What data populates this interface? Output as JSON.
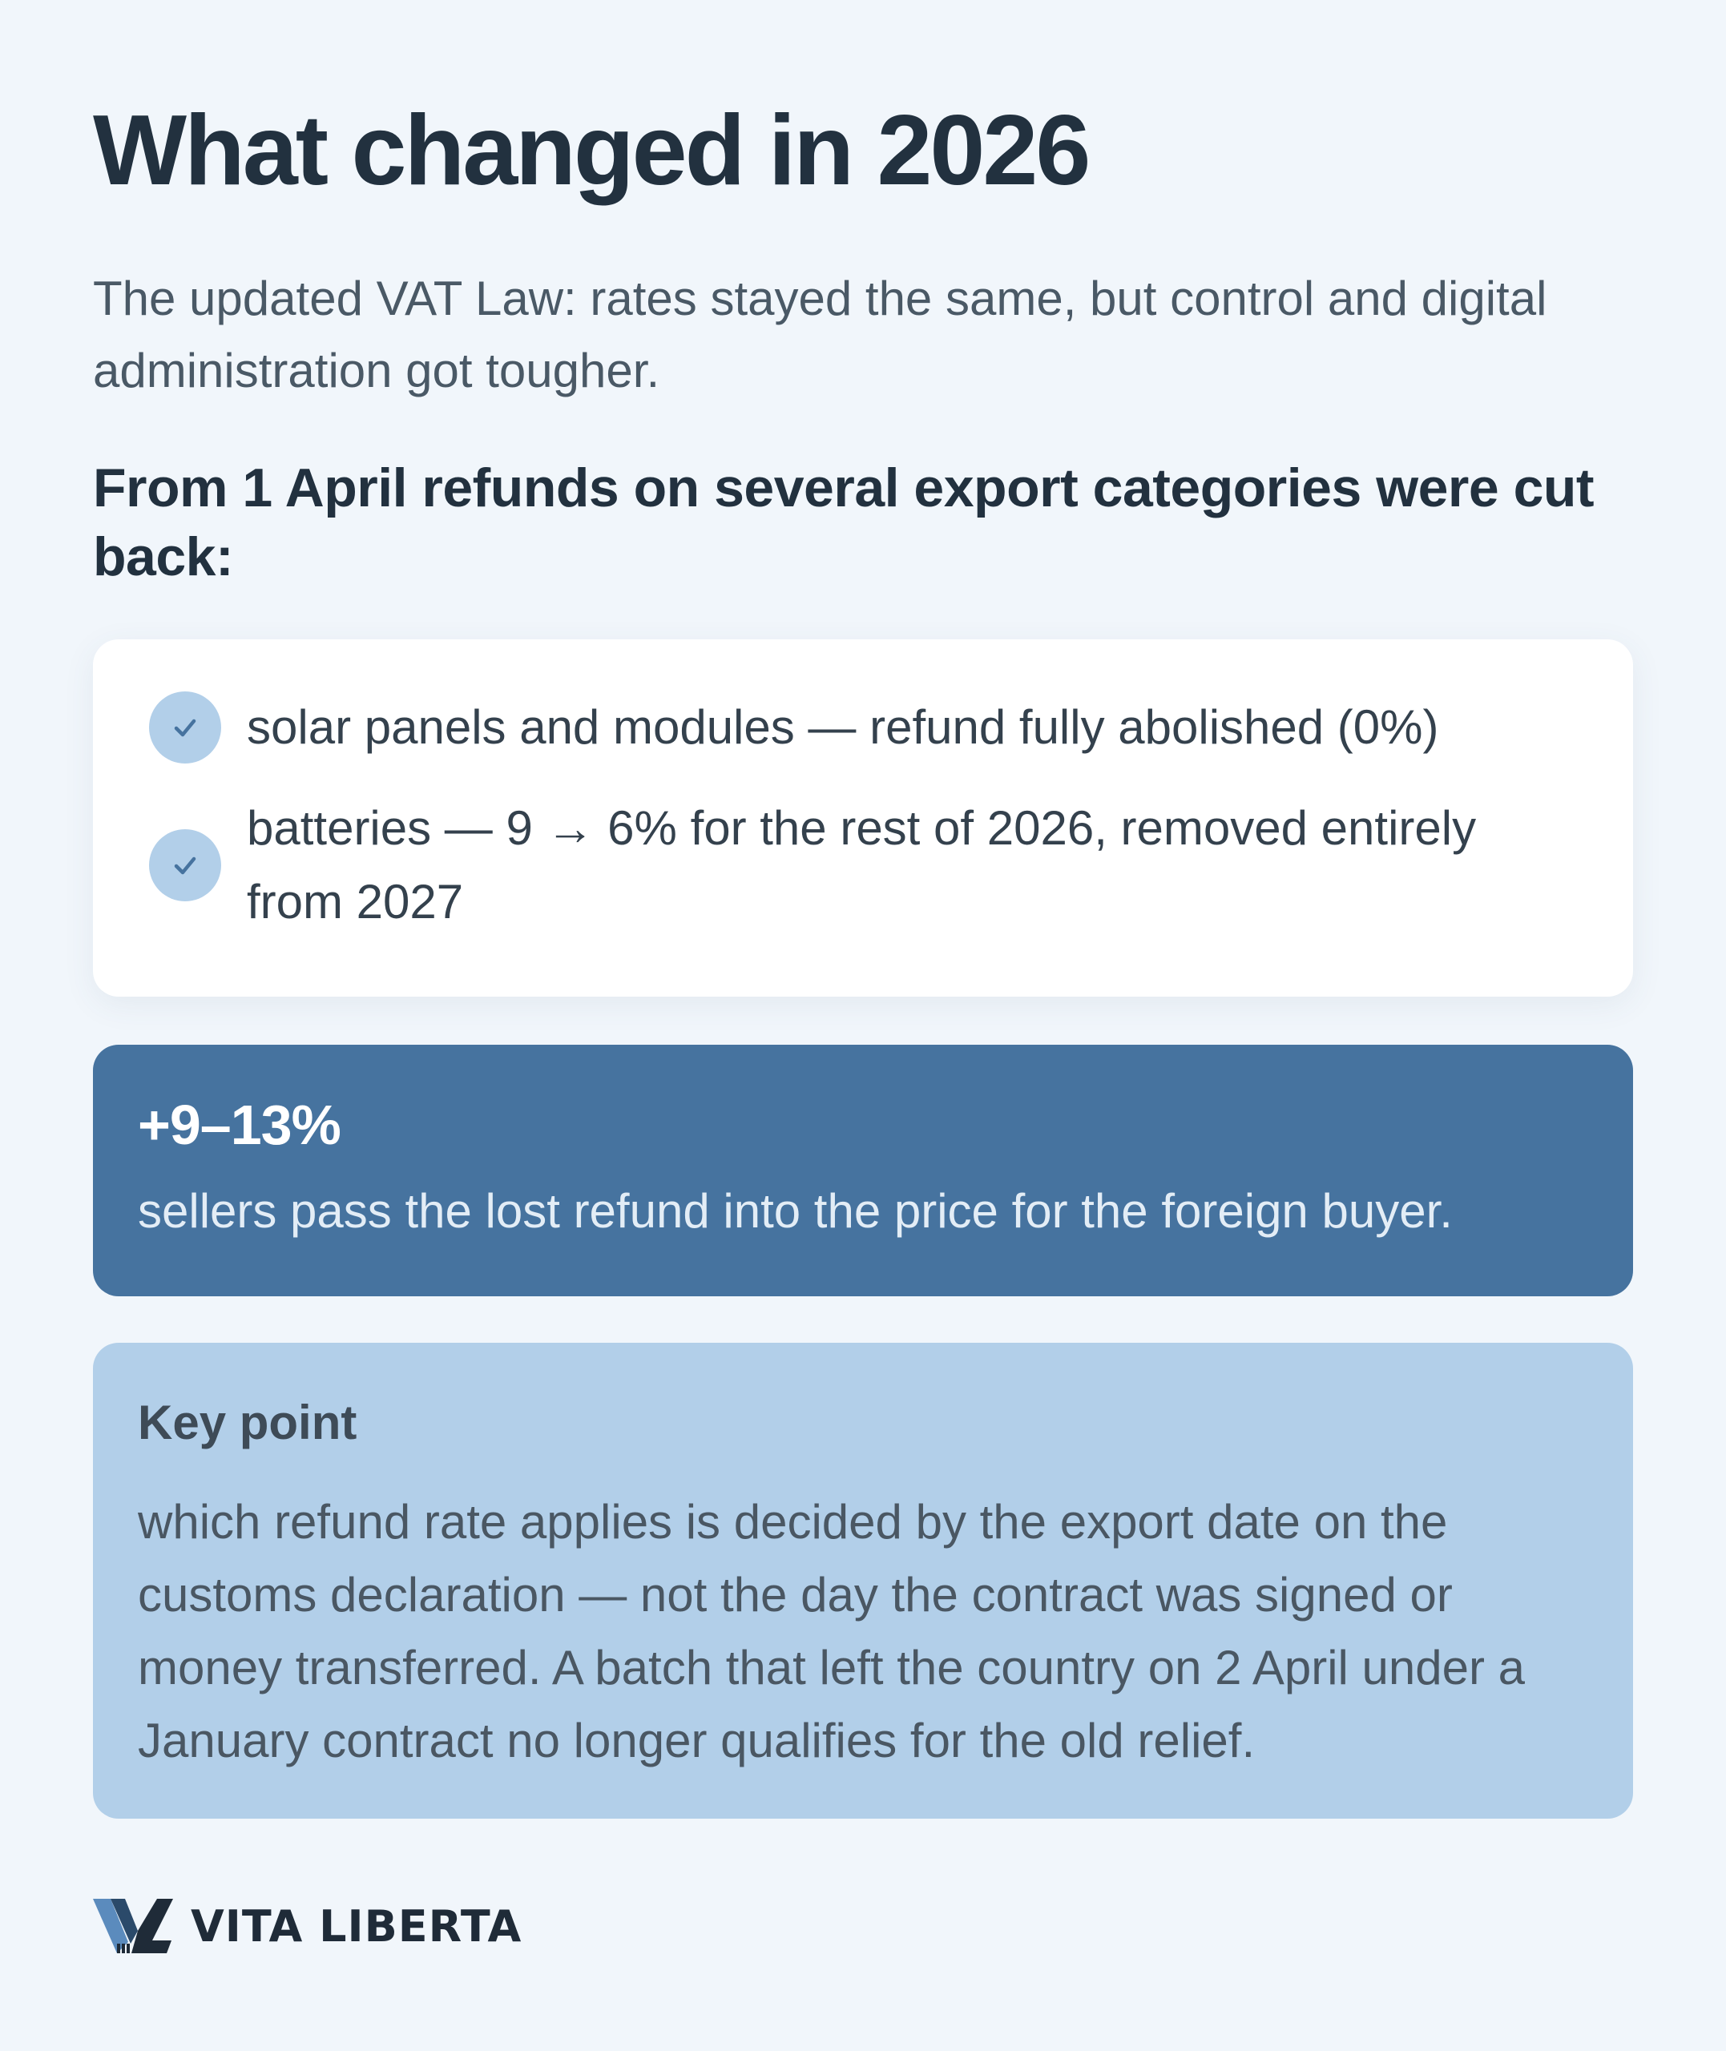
{
  "header": {
    "title": "What changed in 2026",
    "subtitle": "The updated VAT Law: rates stayed the same, but control and digital administration got tougher.",
    "lead": "From 1 April refunds on several export categories were cut back:"
  },
  "list": {
    "items": [
      {
        "icon": "check-icon",
        "text": "solar panels and modules — refund fully abolished (0%)"
      },
      {
        "icon": "check-icon",
        "text": "batteries — 9 → 6% for the rest of 2026, removed entirely from 2027"
      }
    ]
  },
  "stat": {
    "value": "+9–13%",
    "text": "sellers pass the lost refund into the price for the foreign buyer."
  },
  "key_point": {
    "title": "Key point",
    "text": "which refund rate applies is decided by the export date on the customs declaration — not the day the contract was signed or money transferred. A batch that left the country on 2 April under a January contract no longer qualifies for the old relief."
  },
  "brand": {
    "name": "VITA LIBERTA",
    "logo": "vita-liberta-logo"
  },
  "colors": {
    "background": "#f1f6fb",
    "heading": "#22313f",
    "check_circle": "#b2cfe9",
    "stat_card": "#46739f",
    "key_card": "#b2cfe9"
  }
}
